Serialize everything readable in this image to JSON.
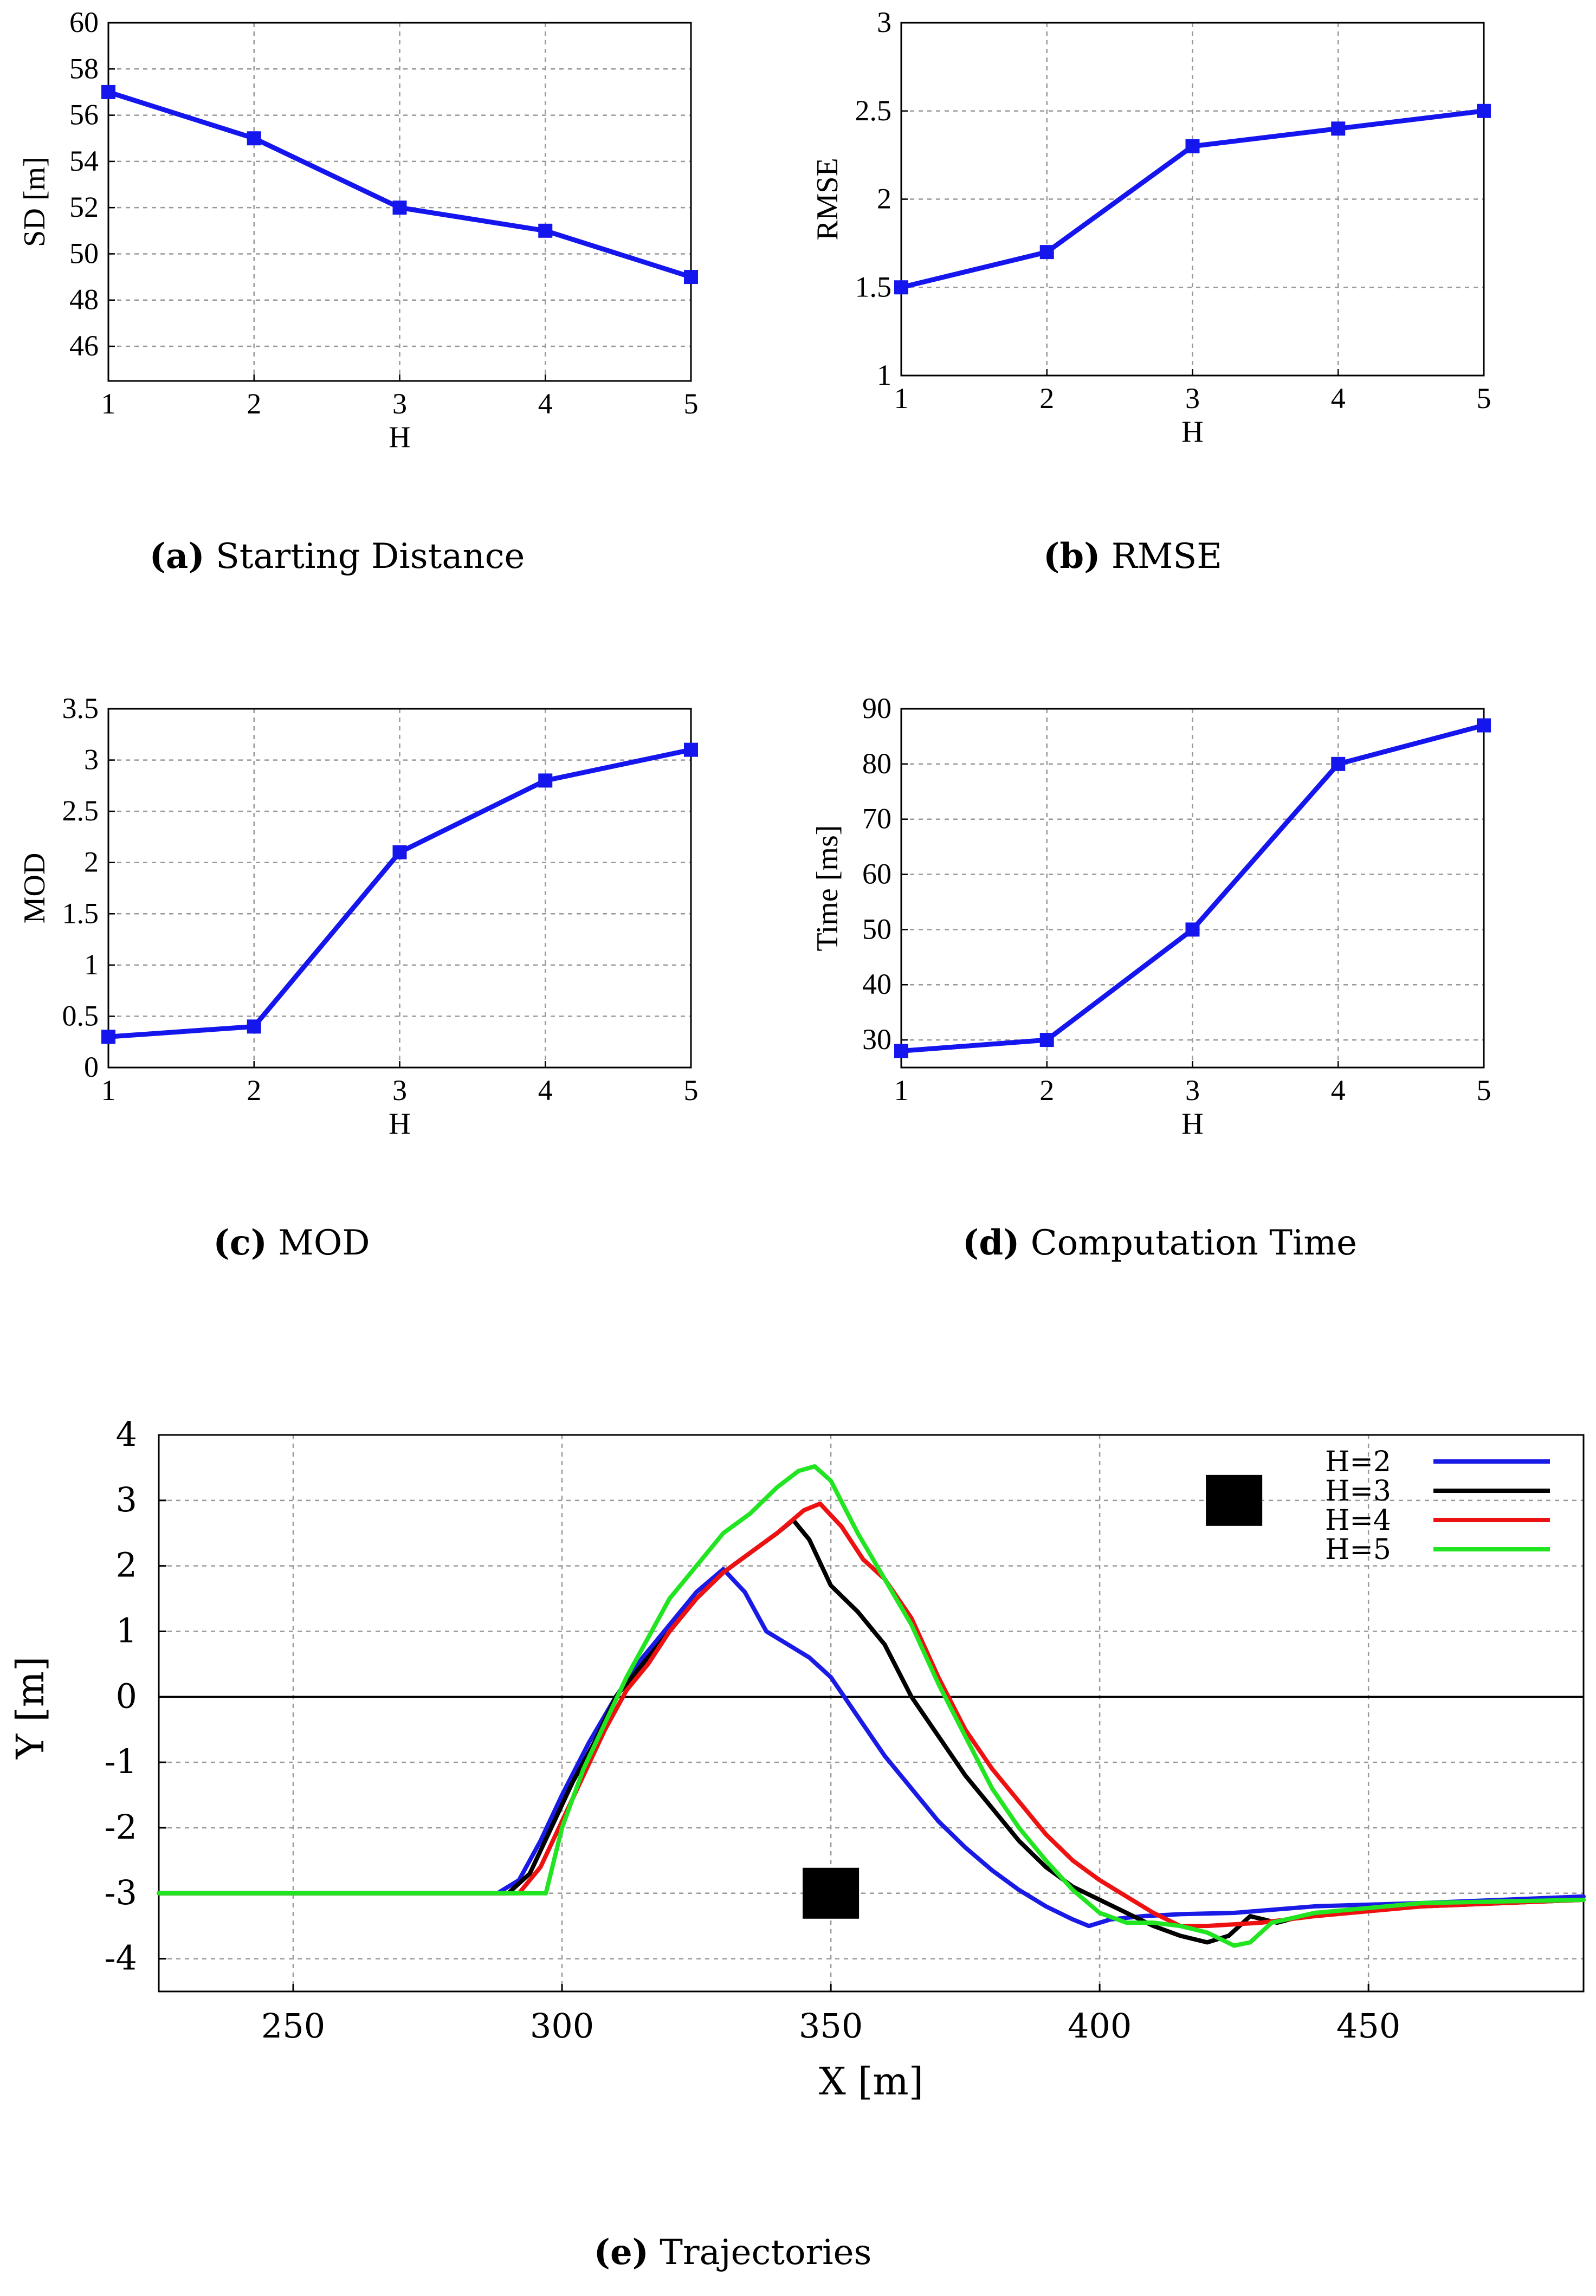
{
  "chart_data": [
    {
      "id": "a",
      "type": "line",
      "caption_letter": "(a)",
      "caption_text": " Starting Distance",
      "xlabel": "H",
      "ylabel": "SD [m]",
      "x": [
        1,
        2,
        3,
        4,
        5
      ],
      "y": [
        57,
        55,
        52,
        51,
        49
      ],
      "xlim": [
        1,
        5
      ],
      "ylim": [
        44.5,
        60
      ],
      "xticks": [
        "1",
        "2",
        "3",
        "4",
        "5"
      ],
      "yticks": [
        46,
        48,
        50,
        52,
        54,
        56,
        58,
        60
      ],
      "color": "#1515ee"
    },
    {
      "id": "b",
      "type": "line",
      "caption_letter": "(b)",
      "caption_text": " RMSE",
      "xlabel": "H",
      "ylabel": "RMSE",
      "x": [
        1,
        2,
        3,
        4,
        5
      ],
      "y": [
        1.5,
        1.7,
        2.3,
        2.4,
        2.5
      ],
      "xlim": [
        1,
        5
      ],
      "ylim": [
        1,
        3
      ],
      "xticks": [
        "1",
        "2",
        "3",
        "4",
        "5"
      ],
      "yticks": [
        1,
        1.5,
        2,
        2.5,
        3
      ],
      "color": "#1515ee"
    },
    {
      "id": "c",
      "type": "line",
      "caption_letter": "(c)",
      "caption_text": " MOD",
      "xlabel": "H",
      "ylabel": "MOD",
      "x": [
        1,
        2,
        3,
        4,
        5
      ],
      "y": [
        0.3,
        0.4,
        2.1,
        2.8,
        3.1
      ],
      "xlim": [
        1,
        5
      ],
      "ylim": [
        0,
        3.5
      ],
      "xticks": [
        "1",
        "2",
        "3",
        "4",
        "5"
      ],
      "yticks": [
        0,
        0.5,
        1,
        1.5,
        2,
        2.5,
        3,
        3.5
      ],
      "color": "#1515ee"
    },
    {
      "id": "d",
      "type": "line",
      "caption_letter": "(d)",
      "caption_text": " Computation Time",
      "xlabel": "H",
      "ylabel": "Time [ms]",
      "x": [
        1,
        2,
        3,
        4,
        5
      ],
      "y": [
        28,
        30,
        50,
        80,
        87
      ],
      "xlim": [
        1,
        5
      ],
      "ylim": [
        25,
        90
      ],
      "xticks": [
        "1",
        "2",
        "3",
        "4",
        "5"
      ],
      "yticks": [
        30,
        40,
        50,
        60,
        70,
        80,
        90
      ],
      "color": "#1515ee"
    },
    {
      "id": "e",
      "type": "line",
      "caption_letter": "(e)",
      "caption_text": " Trajectories",
      "xlabel": "X [m]",
      "ylabel": "Y [m]",
      "xlim": [
        225,
        490
      ],
      "ylim": [
        -4.5,
        4
      ],
      "xticks": [
        250,
        300,
        350,
        400,
        450
      ],
      "yticks": [
        -4,
        -3,
        -2,
        -1,
        0,
        1,
        2,
        3,
        4
      ],
      "legend_position": "top-right",
      "obstacles": [
        {
          "x": 350,
          "y": -3
        },
        {
          "x": 425,
          "y": 3
        }
      ],
      "series": [
        {
          "name": "H=2",
          "color": "#1a1ae6",
          "x": [
            225,
            288,
            292,
            296,
            300,
            305,
            310,
            315,
            320,
            325,
            330,
            334,
            338,
            342,
            346,
            350,
            355,
            360,
            365,
            370,
            375,
            380,
            385,
            390,
            395,
            398,
            402,
            408,
            415,
            425,
            440,
            460,
            490
          ],
          "y": [
            -3,
            -3,
            -2.8,
            -2.2,
            -1.5,
            -0.7,
            0,
            0.6,
            1.1,
            1.6,
            1.95,
            1.6,
            1.0,
            0.8,
            0.6,
            0.3,
            -0.3,
            -0.9,
            -1.4,
            -1.9,
            -2.3,
            -2.65,
            -2.95,
            -3.2,
            -3.4,
            -3.5,
            -3.4,
            -3.35,
            -3.32,
            -3.3,
            -3.2,
            -3.15,
            -3.05
          ]
        },
        {
          "name": "H=3",
          "color": "#000000",
          "x": [
            225,
            290,
            294,
            298,
            302,
            306,
            310,
            315,
            320,
            325,
            330,
            335,
            340,
            343,
            346,
            350,
            355,
            360,
            365,
            370,
            375,
            380,
            385,
            390,
            395,
            400,
            405,
            410,
            415,
            420,
            424,
            428,
            433,
            440,
            460,
            490
          ],
          "y": [
            -3,
            -3,
            -2.7,
            -2.0,
            -1.3,
            -0.7,
            0,
            0.5,
            1.0,
            1.5,
            1.9,
            2.2,
            2.5,
            2.7,
            2.4,
            1.7,
            1.3,
            0.8,
            0.0,
            -0.6,
            -1.2,
            -1.7,
            -2.2,
            -2.6,
            -2.9,
            -3.1,
            -3.3,
            -3.5,
            -3.65,
            -3.75,
            -3.65,
            -3.35,
            -3.45,
            -3.3,
            -3.2,
            -3.1
          ]
        },
        {
          "name": "H=4",
          "color": "#ee1111",
          "x": [
            225,
            292,
            296,
            300,
            304,
            308,
            312,
            316,
            320,
            325,
            330,
            335,
            340,
            345,
            348,
            352,
            356,
            360,
            365,
            370,
            375,
            380,
            385,
            390,
            395,
            400,
            405,
            410,
            415,
            420,
            430,
            440,
            460,
            490
          ],
          "y": [
            -3,
            -3,
            -2.6,
            -1.9,
            -1.2,
            -0.5,
            0.1,
            0.5,
            1.0,
            1.5,
            1.9,
            2.2,
            2.5,
            2.85,
            2.95,
            2.6,
            2.1,
            1.8,
            1.2,
            0.3,
            -0.5,
            -1.1,
            -1.6,
            -2.1,
            -2.5,
            -2.8,
            -3.05,
            -3.3,
            -3.5,
            -3.5,
            -3.45,
            -3.35,
            -3.2,
            -3.1
          ]
        },
        {
          "name": "H=5",
          "color": "#22e522",
          "x": [
            225,
            290,
            297,
            300,
            304,
            308,
            312,
            316,
            320,
            325,
            330,
            335,
            340,
            344,
            347,
            350,
            355,
            360,
            365,
            370,
            375,
            380,
            385,
            390,
            395,
            400,
            405,
            410,
            415,
            420,
            425,
            428,
            432,
            440,
            460,
            490
          ],
          "y": [
            -3,
            -3,
            -3,
            -2.0,
            -1.1,
            -0.4,
            0.3,
            0.9,
            1.5,
            2.0,
            2.5,
            2.8,
            3.2,
            3.45,
            3.52,
            3.3,
            2.5,
            1.8,
            1.1,
            0.2,
            -0.6,
            -1.4,
            -2.0,
            -2.5,
            -2.95,
            -3.3,
            -3.45,
            -3.45,
            -3.5,
            -3.6,
            -3.8,
            -3.75,
            -3.45,
            -3.3,
            -3.15,
            -3.1
          ]
        }
      ]
    }
  ]
}
